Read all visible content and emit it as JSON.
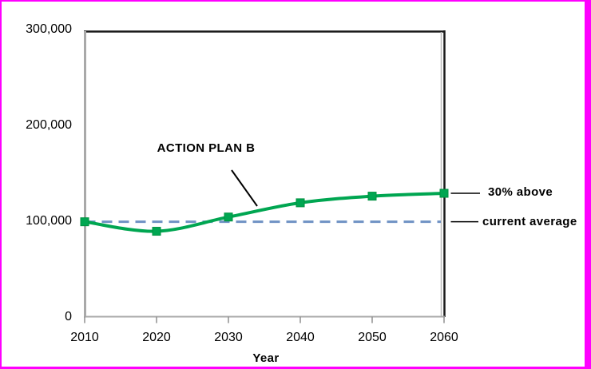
{
  "frame": {
    "border_color": "#ff00ff",
    "background_color": "#ffffff"
  },
  "chart_data": {
    "type": "line",
    "title": "",
    "xlabel": "Year",
    "ylabel": "",
    "xlim": [
      2010,
      2060
    ],
    "ylim": [
      0,
      300000
    ],
    "grid": false,
    "legend_position": "none",
    "x": [
      2010,
      2020,
      2030,
      2040,
      2050,
      2060
    ],
    "x_tick_labels": [
      "2010",
      "2020",
      "2030",
      "2040",
      "2050",
      "2060"
    ],
    "y_tick_labels": [
      "0",
      "100,000",
      "200,000",
      "300,000"
    ],
    "series": [
      {
        "name": "ACTION PLAN B",
        "type": "line",
        "color": "#00a651",
        "marker": "square",
        "marker_border_color": "#00913f",
        "values": [
          100000,
          90000,
          105000,
          120000,
          127000,
          130000
        ]
      },
      {
        "name": "current average",
        "type": "reference-line",
        "color": "#6f92c4",
        "style": "dashed",
        "value": 100000
      }
    ],
    "annotations": [
      {
        "id": "plan",
        "text": "ACTION PLAN B"
      },
      {
        "id": "above",
        "text": "30% above",
        "at_value": 130000
      },
      {
        "id": "avg",
        "text": "current average",
        "at_value": 100000
      }
    ]
  }
}
